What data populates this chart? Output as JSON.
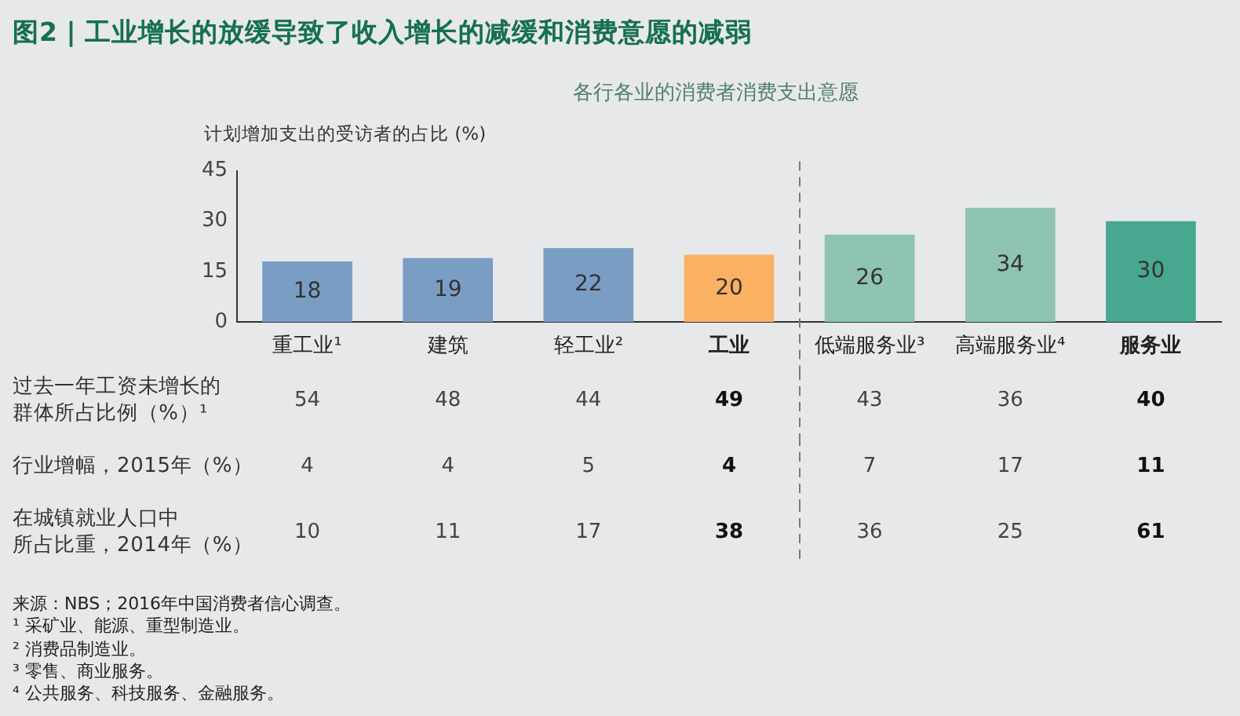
{
  "chart_data": [
    {
      "type": "bar",
      "title": "图2 | 工业增长的放缓导致了收入增长的减缓和消费意愿的减弱",
      "subtitle": "各行各业的消费者消费支出意愿",
      "ylabel": "计划增加支出的受访者的占比 (%)",
      "categories": [
        "重工业¹",
        "建筑",
        "轻工业²",
        "工业",
        "低端服务业³",
        "高端服务业⁴",
        "服务业"
      ],
      "values": [
        18,
        19,
        22,
        20,
        26,
        34,
        30
      ],
      "colors": [
        "#7a9dc4",
        "#7a9dc4",
        "#7a9dc4",
        "#fbb162",
        "#8ec4b1",
        "#8ec4b1",
        "#47a88f"
      ],
      "ylim": [
        0,
        45
      ],
      "yticks": [
        0,
        15,
        30,
        45
      ],
      "data_labels": true
    },
    {
      "type": "other",
      "ylabel": "过去一年工资未增长的群体所占比例（%）¹",
      "values": [
        54,
        48,
        44,
        49,
        43,
        36,
        40
      ],
      "data_labels": true
    },
    {
      "type": "other",
      "ylabel": "行业增幅，2015年（%）",
      "values": [
        4,
        4,
        5,
        4,
        7,
        17,
        11
      ],
      "data_labels": true
    },
    {
      "type": "other",
      "ylabel": "在城镇就业人口中所占比重，2014年（%）",
      "values": [
        10,
        11,
        17,
        38,
        36,
        25,
        61
      ],
      "data_labels": true,
      "annotations": [
        "来源：NBS；2016年中国消费者信心调查。",
        "¹ 采矿业、能源、重型制造业。",
        "² 消费品制造业。",
        "³ 零售、商业服务。",
        "⁴ 公共服务、科技服务、金融服务。"
      ]
    }
  ]
}
